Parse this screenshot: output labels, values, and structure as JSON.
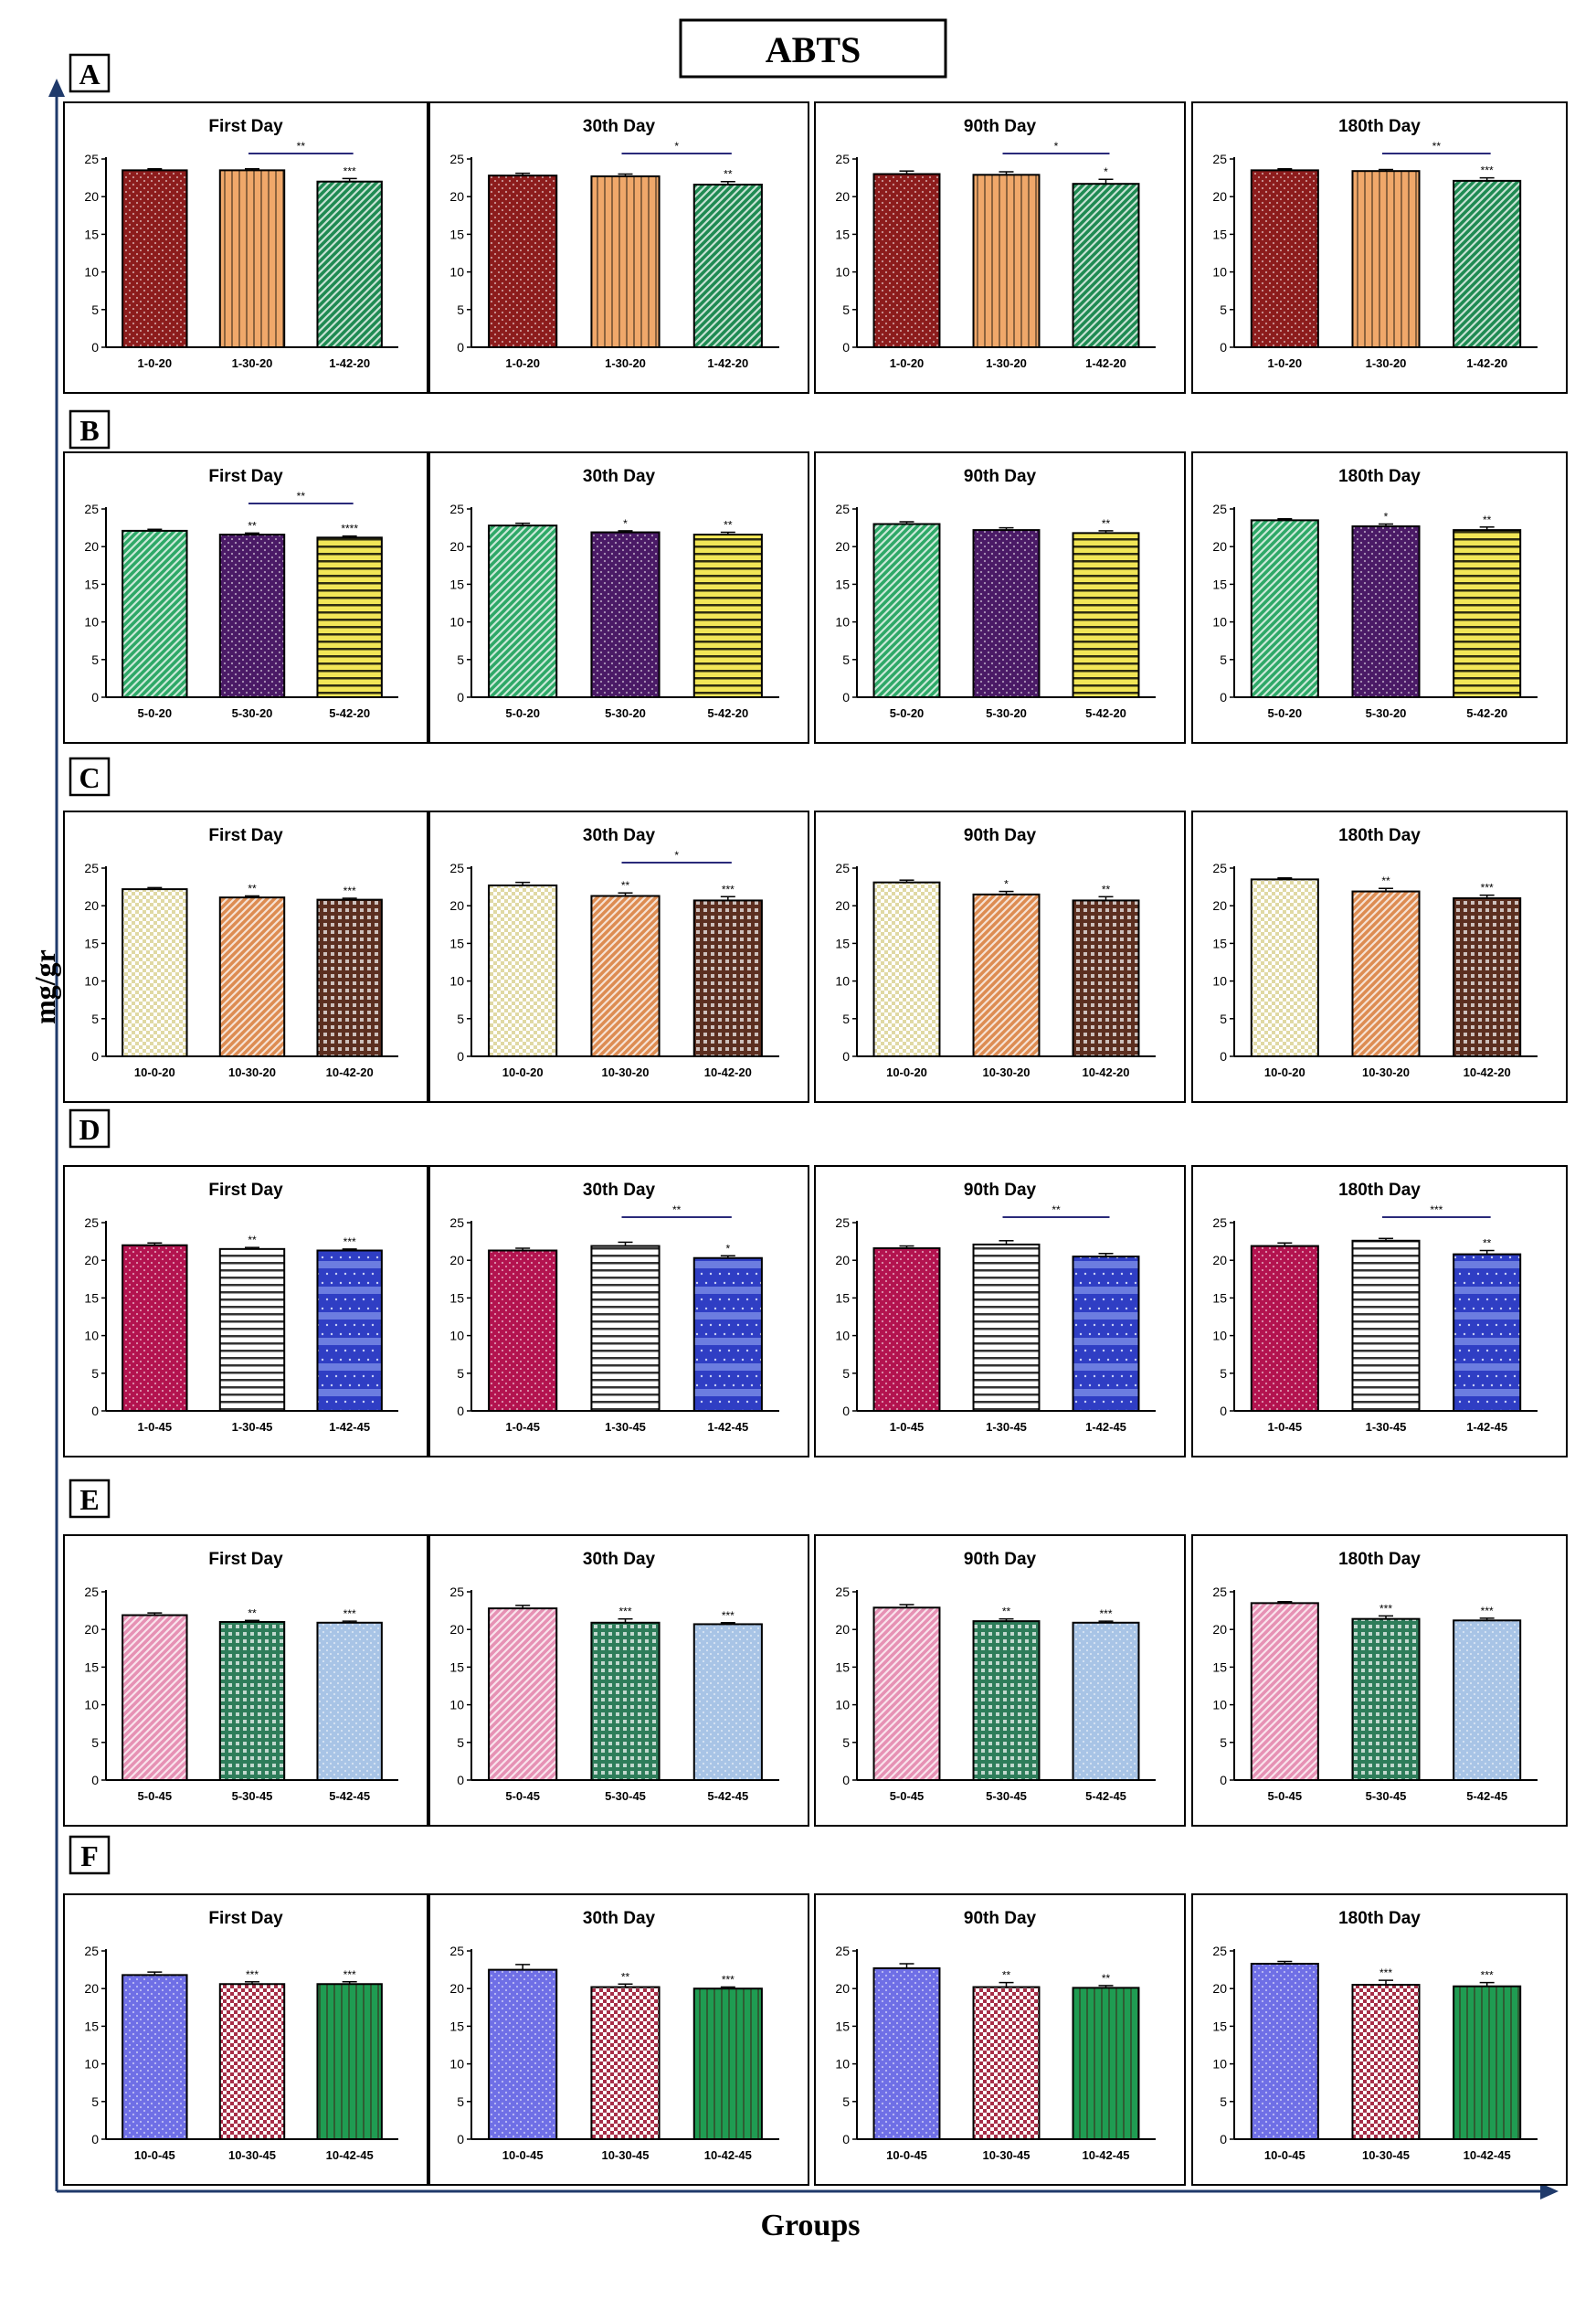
{
  "figure": {
    "title": "ABTS",
    "ylabel": "mg/gr",
    "xlabel": "Groups",
    "yticks": [
      0,
      5,
      10,
      15,
      20,
      25
    ],
    "ylim": [
      0,
      25
    ],
    "panel_titles": [
      "First Day",
      "30th Day",
      "90th Day",
      "180th Day"
    ]
  },
  "chart_data": [
    {
      "row": "A",
      "type": "bar",
      "ylim": [
        0,
        25
      ],
      "categories": [
        "1-0-20",
        "1-30-20",
        "1-42-20"
      ],
      "bar_colors": [
        "#8c1c1c",
        "#f0a86a",
        "#1f8a52"
      ],
      "bar_patterns": [
        "dots",
        "vlines",
        "diag"
      ],
      "panels": [
        {
          "title": "First Day",
          "values": [
            23.5,
            23.5,
            22.0
          ],
          "errors": [
            0.2,
            0.2,
            0.4
          ],
          "stars": [
            "",
            "",
            "***"
          ],
          "bracket": {
            "from": 1,
            "to": 2,
            "label": "**"
          }
        },
        {
          "title": "30th Day",
          "values": [
            22.8,
            22.7,
            21.6
          ],
          "errors": [
            0.3,
            0.3,
            0.4
          ],
          "stars": [
            "",
            "",
            "**"
          ],
          "bracket": {
            "from": 1,
            "to": 2,
            "label": "*"
          }
        },
        {
          "title": "90th Day",
          "values": [
            23.0,
            22.9,
            21.7
          ],
          "errors": [
            0.4,
            0.4,
            0.6
          ],
          "stars": [
            "",
            "",
            "*"
          ],
          "bracket": {
            "from": 1,
            "to": 2,
            "label": "*"
          }
        },
        {
          "title": "180th Day",
          "values": [
            23.5,
            23.4,
            22.1
          ],
          "errors": [
            0.2,
            0.2,
            0.4
          ],
          "stars": [
            "",
            "",
            "***"
          ],
          "bracket": {
            "from": 1,
            "to": 2,
            "label": "**"
          }
        }
      ]
    },
    {
      "row": "B",
      "type": "bar",
      "ylim": [
        0,
        25
      ],
      "categories": [
        "5-0-20",
        "5-30-20",
        "5-42-20"
      ],
      "bar_colors": [
        "#2ea867",
        "#4a1a66",
        "#f2e657"
      ],
      "bar_patterns": [
        "diag",
        "dots",
        "hlines"
      ],
      "panels": [
        {
          "title": "First Day",
          "values": [
            22.1,
            21.6,
            21.2
          ],
          "errors": [
            0.2,
            0.2,
            0.2
          ],
          "stars": [
            "",
            "**",
            "****"
          ],
          "bracket": {
            "from": 1,
            "to": 2,
            "label": "**"
          }
        },
        {
          "title": "30th Day",
          "values": [
            22.8,
            21.9,
            21.6
          ],
          "errors": [
            0.3,
            0.2,
            0.3
          ],
          "stars": [
            "",
            "*",
            "**"
          ],
          "bracket": null
        },
        {
          "title": "90th Day",
          "values": [
            23.0,
            22.2,
            21.8
          ],
          "errors": [
            0.3,
            0.3,
            0.3
          ],
          "stars": [
            "",
            "",
            "**"
          ],
          "bracket": null
        },
        {
          "title": "180th Day",
          "values": [
            23.5,
            22.7,
            22.2
          ],
          "errors": [
            0.2,
            0.3,
            0.4
          ],
          "stars": [
            "",
            "*",
            "**"
          ],
          "bracket": null
        }
      ]
    },
    {
      "row": "C",
      "type": "bar",
      "ylim": [
        0,
        25
      ],
      "categories": [
        "10-0-20",
        "10-30-20",
        "10-42-20"
      ],
      "bar_colors": [
        "#e0d9a4",
        "#dd8c52",
        "#5c2f20"
      ],
      "bar_patterns": [
        "check",
        "diag",
        "grid"
      ],
      "panels": [
        {
          "title": "First Day",
          "values": [
            22.2,
            21.1,
            20.8
          ],
          "errors": [
            0.2,
            0.2,
            0.2
          ],
          "stars": [
            "",
            "**",
            "***"
          ],
          "bracket": null
        },
        {
          "title": "30th Day",
          "values": [
            22.7,
            21.3,
            20.7
          ],
          "errors": [
            0.4,
            0.4,
            0.5
          ],
          "stars": [
            "",
            "**",
            "***"
          ],
          "bracket": {
            "from": 1,
            "to": 2,
            "label": "*"
          }
        },
        {
          "title": "90th Day",
          "values": [
            23.1,
            21.5,
            20.7
          ],
          "errors": [
            0.3,
            0.4,
            0.5
          ],
          "stars": [
            "",
            "*",
            "**"
          ],
          "bracket": null
        },
        {
          "title": "180th Day",
          "values": [
            23.5,
            21.9,
            21.0
          ],
          "errors": [
            0.2,
            0.4,
            0.4
          ],
          "stars": [
            "",
            "**",
            "***"
          ],
          "bracket": null
        }
      ]
    },
    {
      "row": "D",
      "type": "bar",
      "ylim": [
        0,
        25
      ],
      "categories": [
        "1-0-45",
        "1-30-45",
        "1-42-45"
      ],
      "bar_colors": [
        "#b3134f",
        "#ffffff",
        "#2f3ec4"
      ],
      "bar_patterns": [
        "dots",
        "hlines",
        "blue"
      ],
      "panels": [
        {
          "title": "First Day",
          "values": [
            22.0,
            21.5,
            21.3
          ],
          "errors": [
            0.3,
            0.2,
            0.2
          ],
          "stars": [
            "",
            "**",
            "***"
          ],
          "bracket": null
        },
        {
          "title": "30th Day",
          "values": [
            21.3,
            21.9,
            20.3
          ],
          "errors": [
            0.3,
            0.5,
            0.3
          ],
          "stars": [
            "",
            "",
            "*"
          ],
          "bracket": {
            "from": 1,
            "to": 2,
            "label": "**"
          }
        },
        {
          "title": "90th Day",
          "values": [
            21.6,
            22.1,
            20.5
          ],
          "errors": [
            0.3,
            0.5,
            0.4
          ],
          "stars": [
            "",
            "",
            ""
          ],
          "bracket": {
            "from": 1,
            "to": 2,
            "label": "**"
          }
        },
        {
          "title": "180th Day",
          "values": [
            21.9,
            22.6,
            20.8
          ],
          "errors": [
            0.4,
            0.3,
            0.5
          ],
          "stars": [
            "",
            "",
            "**"
          ],
          "bracket": {
            "from": 1,
            "to": 2,
            "label": "***"
          }
        }
      ]
    },
    {
      "row": "E",
      "type": "bar",
      "ylim": [
        0,
        25
      ],
      "categories": [
        "5-0-45",
        "5-30-45",
        "5-42-45"
      ],
      "bar_colors": [
        "#e691b4",
        "#2e7d5a",
        "#a8c4e6"
      ],
      "bar_patterns": [
        "diag",
        "grid",
        "dots"
      ],
      "panels": [
        {
          "title": "First Day",
          "values": [
            21.9,
            21.0,
            20.9
          ],
          "errors": [
            0.3,
            0.2,
            0.2
          ],
          "stars": [
            "",
            "**",
            "***"
          ],
          "bracket": null
        },
        {
          "title": "30th Day",
          "values": [
            22.8,
            20.9,
            20.7
          ],
          "errors": [
            0.4,
            0.5,
            0.2
          ],
          "stars": [
            "",
            "***",
            "***"
          ],
          "bracket": null
        },
        {
          "title": "90th Day",
          "values": [
            22.9,
            21.1,
            20.9
          ],
          "errors": [
            0.4,
            0.3,
            0.2
          ],
          "stars": [
            "",
            "**",
            "***"
          ],
          "bracket": null
        },
        {
          "title": "180th Day",
          "values": [
            23.5,
            21.4,
            21.2
          ],
          "errors": [
            0.2,
            0.4,
            0.3
          ],
          "stars": [
            "",
            "***",
            "***"
          ],
          "bracket": null
        }
      ]
    },
    {
      "row": "F",
      "type": "bar",
      "ylim": [
        0,
        25
      ],
      "categories": [
        "10-0-45",
        "10-30-45",
        "10-42-45"
      ],
      "bar_colors": [
        "#6f6fe6",
        "#a62e47",
        "#1f9c52"
      ],
      "bar_patterns": [
        "dots",
        "check",
        "vlines"
      ],
      "panels": [
        {
          "title": "First Day",
          "values": [
            21.8,
            20.6,
            20.6
          ],
          "errors": [
            0.4,
            0.3,
            0.3
          ],
          "stars": [
            "",
            "***",
            "***"
          ],
          "bracket": null
        },
        {
          "title": "30th Day",
          "values": [
            22.5,
            20.2,
            20.0
          ],
          "errors": [
            0.7,
            0.4,
            0.2
          ],
          "stars": [
            "",
            "**",
            "***"
          ],
          "bracket": null
        },
        {
          "title": "90th Day",
          "values": [
            22.7,
            20.2,
            20.1
          ],
          "errors": [
            0.6,
            0.6,
            0.3
          ],
          "stars": [
            "",
            "**",
            "**"
          ],
          "bracket": null
        },
        {
          "title": "180th Day",
          "values": [
            23.3,
            20.5,
            20.3
          ],
          "errors": [
            0.3,
            0.6,
            0.5
          ],
          "stars": [
            "",
            "***",
            "***"
          ],
          "bracket": null
        }
      ]
    }
  ]
}
